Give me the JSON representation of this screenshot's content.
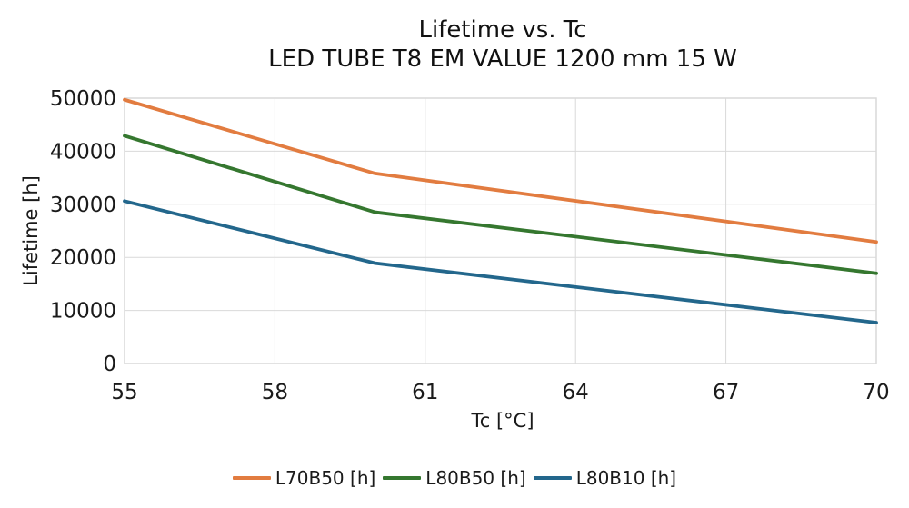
{
  "chart": {
    "title_line1": "Lifetime vs. Tc",
    "title_line2": "LED TUBE T8 EM VALUE 1200 mm 15 W",
    "xlabel": "Tc [°C]",
    "ylabel": "Lifetime [h]"
  },
  "chart_data": {
    "type": "line",
    "title": "Lifetime vs. Tc",
    "subtitle": "LED TUBE T8 EM VALUE 1200 mm 15 W",
    "xlabel": "Tc [°C]",
    "ylabel": "Lifetime [h]",
    "x": [
      55,
      60,
      70
    ],
    "series": [
      {
        "name": "L70B50 [h]",
        "color": "#E27C40",
        "values": [
          49700,
          35800,
          22900
        ]
      },
      {
        "name": "L80B50 [h]",
        "color": "#35772F",
        "values": [
          42900,
          28500,
          17000
        ]
      },
      {
        "name": "L80B10 [h]",
        "color": "#23678C",
        "values": [
          30600,
          18900,
          7700
        ]
      }
    ],
    "xticks": [
      55,
      58,
      61,
      64,
      67,
      70
    ],
    "yticks": [
      0,
      10000,
      20000,
      30000,
      40000,
      50000
    ],
    "xlim": [
      55,
      70
    ],
    "ylim": [
      0,
      50000
    ],
    "grid": true,
    "grid_color": "#d9d9d9",
    "legend_position": "bottom",
    "markers": false
  }
}
